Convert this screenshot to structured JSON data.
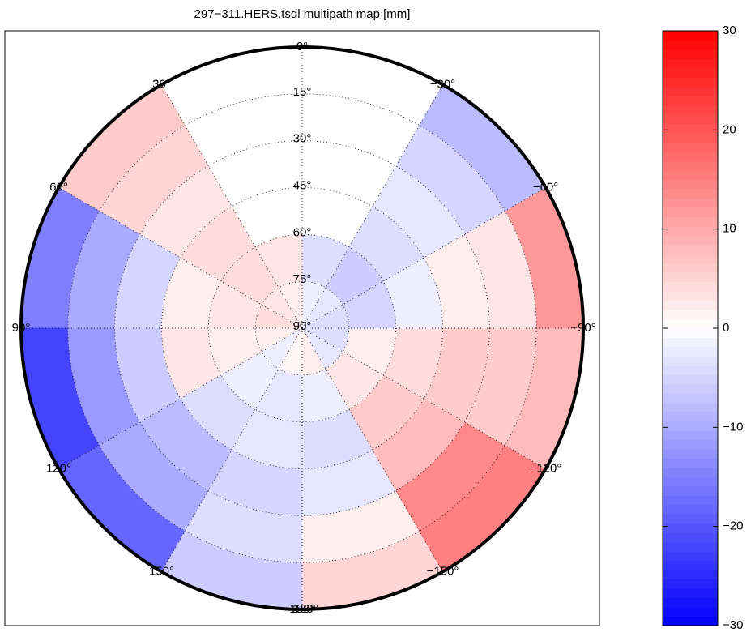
{
  "chart_data": {
    "type": "polar-heatmap",
    "title": "297−311.HERS.tsdl multipath map [mm]",
    "azimuth_bins": [
      -180,
      -150,
      -120,
      -90,
      -60,
      -30,
      0,
      30,
      60,
      90,
      120,
      150,
      180
    ],
    "elevation_bins": [
      0,
      15,
      30,
      45,
      60,
      75,
      90
    ],
    "values": [
      [
        5,
        15,
        8,
        12,
        -8,
        null,
        null,
        6,
        -15,
        -22,
        -18,
        -6
      ],
      [
        2,
        14,
        6,
        3,
        -5,
        null,
        null,
        5,
        -10,
        -12,
        -10,
        -4
      ],
      [
        -3,
        8,
        6,
        2,
        -3,
        null,
        null,
        3,
        -5,
        -6,
        -8,
        -5
      ],
      [
        -4,
        6,
        4,
        -2,
        -4,
        null,
        null,
        4,
        2,
        3,
        -4,
        -3
      ],
      [
        -2,
        3,
        2,
        -5,
        -6,
        -4,
        3,
        4,
        3,
        2,
        -2,
        -3
      ],
      [
        2,
        -3,
        -4,
        -4,
        -3,
        -2,
        2,
        3,
        4,
        2,
        -2,
        1
      ]
    ],
    "azimuth_ticks": [
      {
        "value": 0,
        "label": "0°"
      },
      {
        "value": 30,
        "label": "30°"
      },
      {
        "value": 60,
        "label": "60°"
      },
      {
        "value": 90,
        "label": "90°"
      },
      {
        "value": 120,
        "label": "120°"
      },
      {
        "value": 150,
        "label": "150°"
      },
      {
        "value": 180,
        "label": "180°"
      },
      {
        "value": -30,
        "label": "−30°"
      },
      {
        "value": -60,
        "label": "−60°"
      },
      {
        "value": -90,
        "label": "−90°"
      },
      {
        "value": -120,
        "label": "−120°"
      },
      {
        "value": -150,
        "label": "−150°"
      },
      {
        "value": -180,
        "label": "−180°"
      }
    ],
    "elevation_ticks": [
      {
        "value": 15,
        "label": "15°"
      },
      {
        "value": 30,
        "label": "30°"
      },
      {
        "value": 45,
        "label": "45°"
      },
      {
        "value": 60,
        "label": "60°"
      },
      {
        "value": 75,
        "label": "75°"
      },
      {
        "value": 90,
        "label": "90°"
      }
    ],
    "clim": [
      -30,
      30
    ],
    "colorbar_ticks": [
      30,
      20,
      10,
      0,
      {
        "value": -10,
        "label": "−10"
      },
      {
        "value": -20,
        "label": "−20"
      },
      {
        "value": -30,
        "label": "−30"
      }
    ],
    "grid": true
  }
}
